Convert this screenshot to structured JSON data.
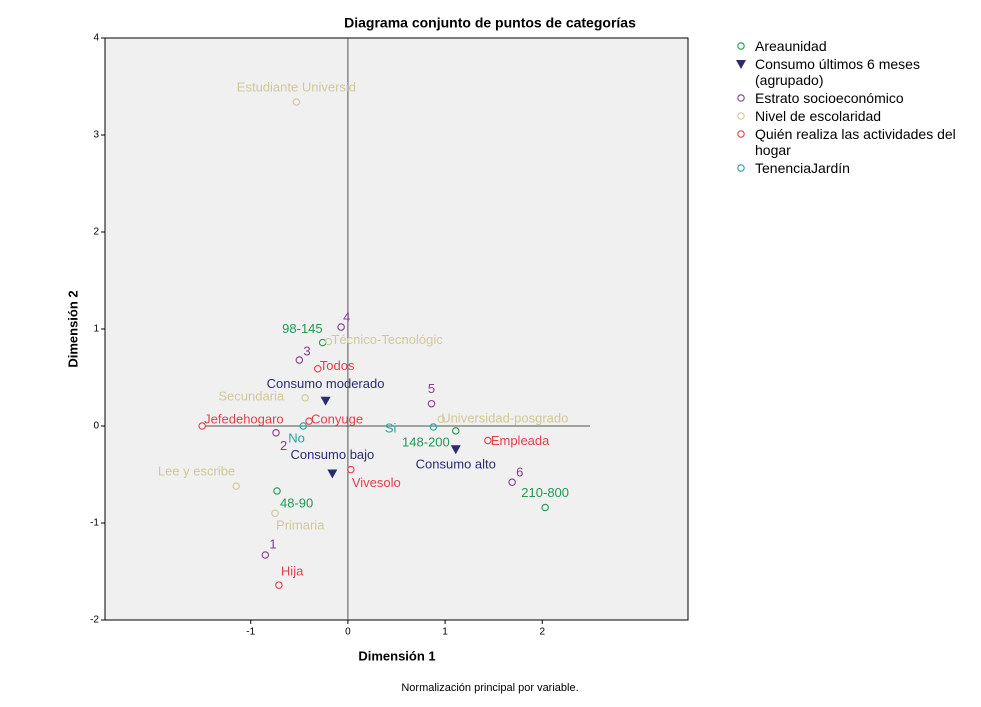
{
  "chart_data": {
    "type": "scatter",
    "title": "Diagrama conjunto de puntos de categorías",
    "x_label": "Dimensión 1",
    "y_label": "Dimensión 2",
    "footnote": "Normalización principal por variable.",
    "xlim": [
      -2.5,
      3.5
    ],
    "ylim": [
      -2,
      4
    ],
    "xticks": [
      -1,
      0,
      1,
      2
    ],
    "yticks": [
      -2,
      -1,
      0,
      1,
      2,
      3,
      4
    ],
    "series": [
      {
        "name": "Areaunidad",
        "color": "#1f9a55",
        "marker": "circle",
        "labels": [
          "98-145",
          "148-200",
          "48-90",
          "210-800"
        ],
        "x": [
          -0.26,
          1.11,
          -0.73,
          2.03
        ],
        "values": [
          0.86,
          -0.05,
          -0.67,
          -0.84
        ]
      },
      {
        "name": "Consumo últimos 6 meses (agrupado)",
        "color": "#2b2c6e",
        "marker": "triangle",
        "labels": [
          "Consumo moderado",
          "Consumo bajo",
          "Consumo alto"
        ],
        "x": [
          -0.23,
          -0.16,
          1.11
        ],
        "values": [
          0.26,
          -0.49,
          -0.24
        ]
      },
      {
        "name": "Estrato socioeconómico",
        "color": "#8b3a8f",
        "marker": "circle",
        "labels": [
          "4",
          "3",
          "5",
          "2",
          "6",
          "1"
        ],
        "x": [
          -0.07,
          -0.5,
          0.86,
          -0.74,
          1.69,
          -0.85
        ],
        "values": [
          1.02,
          0.68,
          0.23,
          -0.07,
          -0.58,
          -1.33
        ]
      },
      {
        "name": "Nivel de escolaridad",
        "color": "#d2c895",
        "marker": "circle",
        "labels": [
          "Estudiante Universid",
          "Técnico-Tecnológic",
          "Secundaria",
          "Universidad-posgrado",
          "Lee y escribe",
          "Primaria"
        ],
        "x": [
          -0.53,
          -0.2,
          -0.44,
          0.96,
          -1.15,
          -0.75
        ],
        "values": [
          3.34,
          0.87,
          0.29,
          0.07,
          -0.62,
          -0.9
        ]
      },
      {
        "name": "Quién realiza las actividades del hogar",
        "color": "#e2404c",
        "marker": "circle",
        "labels": [
          "Todos",
          "Conyuge",
          "Jefedehogaro",
          "Empleada",
          "Vivesolo",
          "Hija"
        ],
        "x": [
          -0.31,
          -0.4,
          -1.5,
          1.44,
          0.03,
          -0.71
        ],
        "values": [
          0.59,
          0.05,
          0.0,
          -0.15,
          -0.45,
          -1.64
        ]
      },
      {
        "name": "TenenciaJardín",
        "color": "#23a5a5",
        "marker": "circle",
        "labels": [
          "No",
          "Si"
        ],
        "x": [
          -0.46,
          0.88
        ],
        "values": [
          0.0,
          -0.01
        ]
      }
    ]
  }
}
